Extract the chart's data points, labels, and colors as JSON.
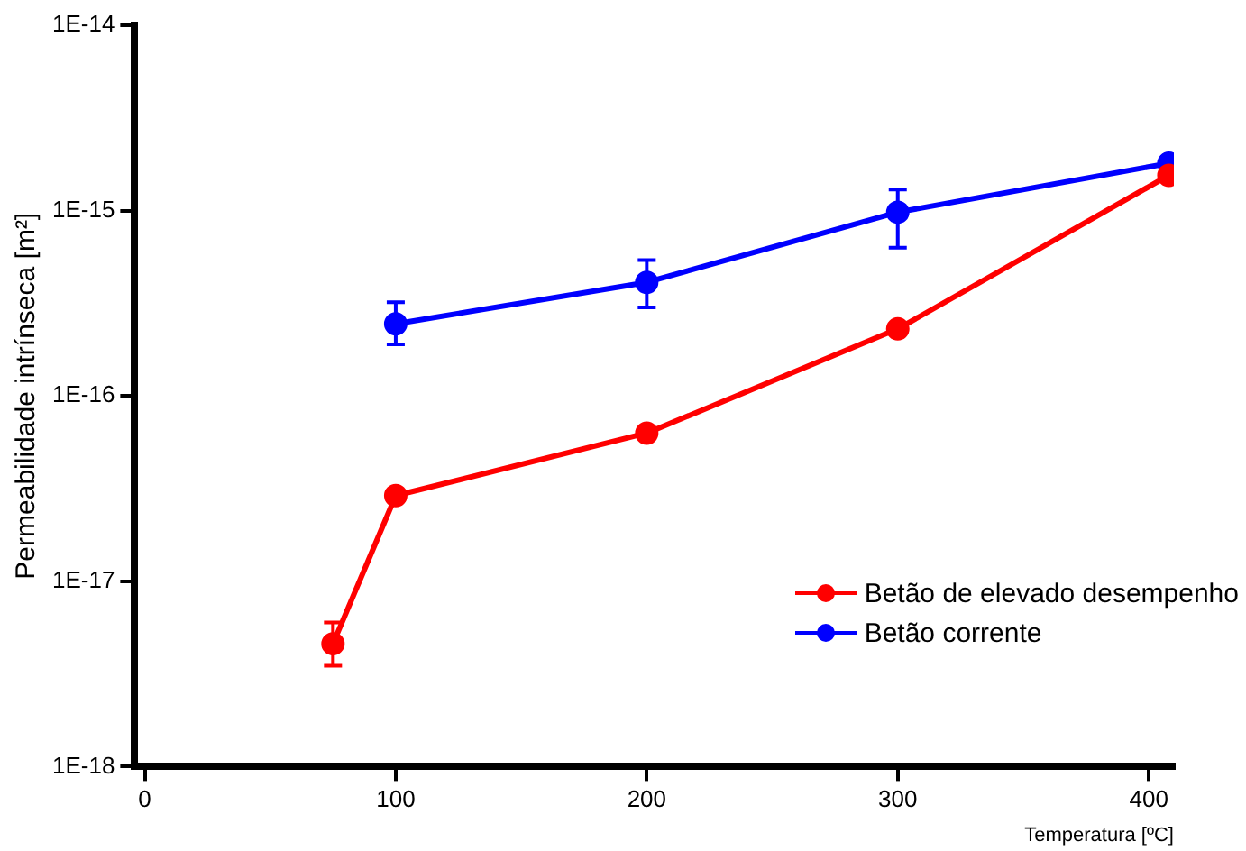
{
  "chart_data": {
    "type": "line",
    "xlabel": "Temperatura [ºC]",
    "ylabel": "Permeabilidade intrínseca [m²]",
    "x": [
      75,
      100,
      200,
      300,
      408
    ],
    "xlim": [
      -4,
      410
    ],
    "xticks": [
      0,
      100,
      200,
      300,
      400
    ],
    "ylim": [
      1e-18,
      1e-14
    ],
    "yticks": [
      {
        "value": 1e-18,
        "label": "1E-18"
      },
      {
        "value": 1e-17,
        "label": "1E-17"
      },
      {
        "value": 1e-16,
        "label": "1E-16"
      },
      {
        "value": 1e-15,
        "label": "1E-15"
      },
      {
        "value": 1e-14,
        "label": "1E-14"
      }
    ],
    "log": "y",
    "grid": false,
    "legend": "bottom right",
    "marker": "circle",
    "line_style": "solid",
    "series": [
      {
        "name": "Betão de elevado desempenho",
        "color": "#ff0000",
        "values": [
          4.6e-18,
          2.9e-17,
          6.3e-17,
          2.3e-16,
          1.55e-15
        ],
        "errors": [
          [
            3.5e-18,
            6e-18
          ],
          null,
          null,
          null,
          null
        ]
      },
      {
        "name": "Betão corrente",
        "color": "#0000ff",
        "x": [
          100,
          200,
          300,
          408
        ],
        "values": [
          2.45e-16,
          4.1e-16,
          9.8e-16,
          1.8e-15
        ],
        "errors": [
          [
            1.9e-16,
            3.2e-16
          ],
          [
            3e-16,
            5.4e-16
          ],
          [
            6.3e-16,
            1.3e-15
          ],
          null
        ]
      }
    ]
  }
}
